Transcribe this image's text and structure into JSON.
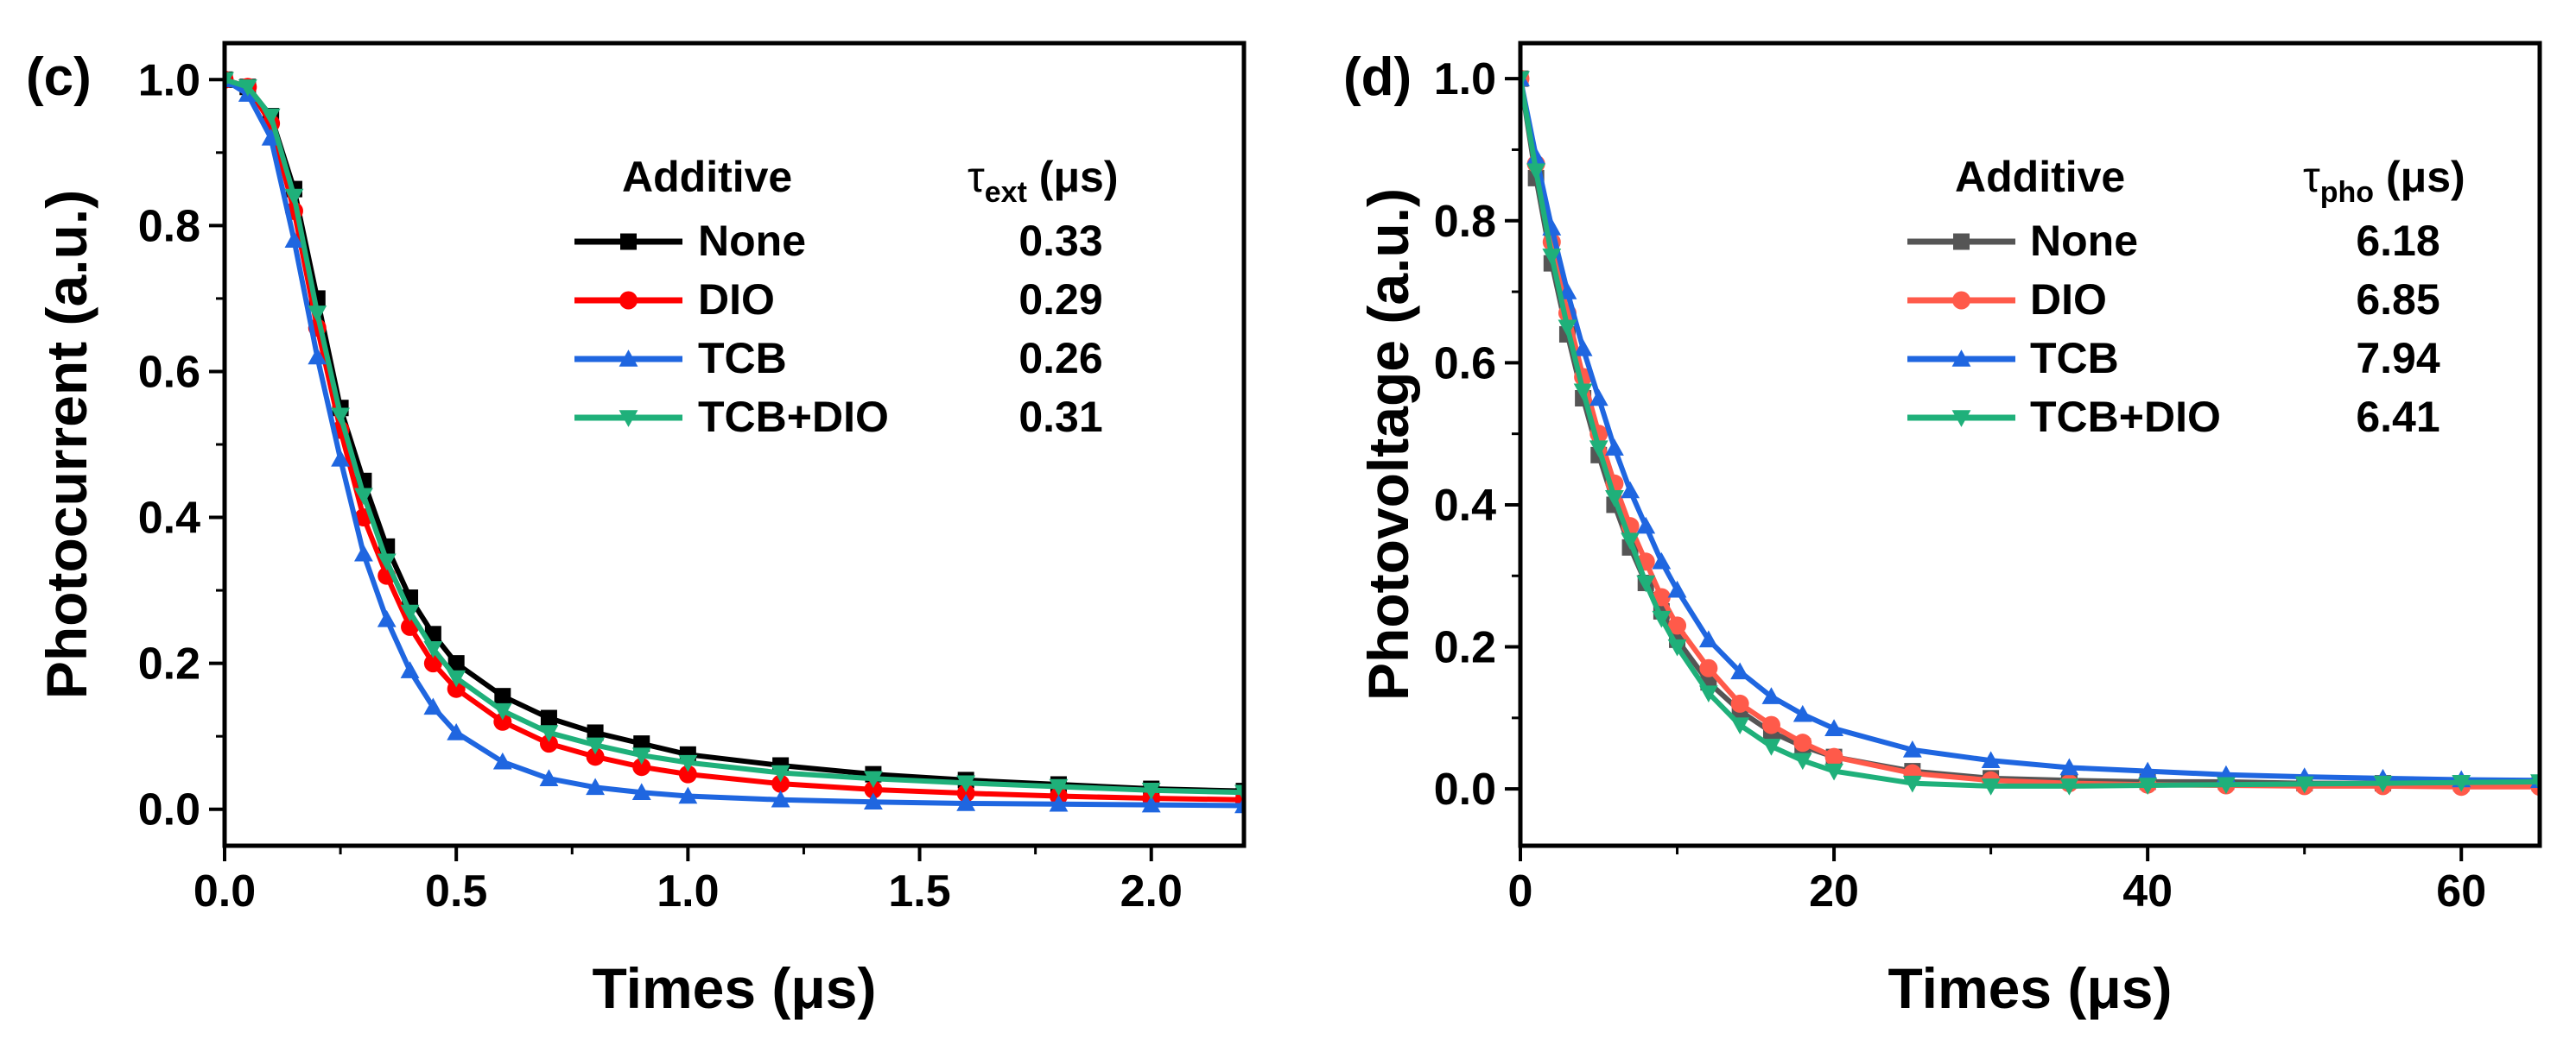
{
  "chart_data": [
    {
      "type": "line",
      "panel_label": "(c)",
      "xlabel": "Times (μs)",
      "ylabel": "Photocurrent (a.u.)",
      "xlim": [
        0,
        2.2
      ],
      "ylim": [
        -0.05,
        1.05
      ],
      "xticks": [
        "0.0",
        "0.5",
        "1.0",
        "1.5",
        "2.0"
      ],
      "yticks": [
        "0.0",
        "0.2",
        "0.4",
        "0.6",
        "0.8",
        "1.0"
      ],
      "legend_title": "Additive",
      "legend_value_header": {
        "symbol": "τ",
        "sub": "ext",
        "unit": " (μs)"
      },
      "legend_position": "top-right",
      "series": [
        {
          "name": "None",
          "value_label": "0.33",
          "color": "#000000",
          "marker": "square",
          "x": [
            0,
            0.05,
            0.1,
            0.15,
            0.2,
            0.25,
            0.3,
            0.35,
            0.4,
            0.45,
            0.5,
            0.6,
            0.7,
            0.8,
            0.9,
            1.0,
            1.2,
            1.4,
            1.6,
            1.8,
            2.0,
            2.2
          ],
          "y": [
            1.0,
            0.99,
            0.95,
            0.85,
            0.7,
            0.55,
            0.45,
            0.36,
            0.29,
            0.24,
            0.2,
            0.155,
            0.125,
            0.105,
            0.09,
            0.075,
            0.06,
            0.048,
            0.04,
            0.034,
            0.028,
            0.025
          ]
        },
        {
          "name": "DIO",
          "value_label": "0.29",
          "color": "#ff0000",
          "marker": "circle",
          "x": [
            0,
            0.05,
            0.1,
            0.15,
            0.2,
            0.25,
            0.3,
            0.35,
            0.4,
            0.45,
            0.5,
            0.6,
            0.7,
            0.8,
            0.9,
            1.0,
            1.2,
            1.4,
            1.6,
            1.8,
            2.0,
            2.2
          ],
          "y": [
            1.0,
            0.99,
            0.94,
            0.82,
            0.66,
            0.52,
            0.4,
            0.32,
            0.25,
            0.2,
            0.165,
            0.12,
            0.09,
            0.072,
            0.058,
            0.048,
            0.035,
            0.027,
            0.022,
            0.018,
            0.015,
            0.013
          ]
        },
        {
          "name": "TCB",
          "value_label": "0.26",
          "color": "#1f66e0",
          "marker": "triangle-up",
          "x": [
            0,
            0.05,
            0.1,
            0.15,
            0.2,
            0.25,
            0.3,
            0.35,
            0.4,
            0.45,
            0.5,
            0.6,
            0.7,
            0.8,
            0.9,
            1.0,
            1.2,
            1.4,
            1.6,
            1.8,
            2.0,
            2.2
          ],
          "y": [
            1.0,
            0.98,
            0.92,
            0.78,
            0.62,
            0.48,
            0.35,
            0.26,
            0.19,
            0.14,
            0.105,
            0.065,
            0.042,
            0.03,
            0.023,
            0.018,
            0.013,
            0.01,
            0.008,
            0.007,
            0.006,
            0.005
          ]
        },
        {
          "name": "TCB+DIO",
          "value_label": "0.31",
          "color": "#1fb07a",
          "marker": "triangle-down",
          "x": [
            0,
            0.05,
            0.1,
            0.15,
            0.2,
            0.25,
            0.3,
            0.35,
            0.4,
            0.45,
            0.5,
            0.6,
            0.7,
            0.8,
            0.9,
            1.0,
            1.2,
            1.4,
            1.6,
            1.8,
            2.0,
            2.2
          ],
          "y": [
            1.0,
            0.99,
            0.95,
            0.84,
            0.68,
            0.54,
            0.43,
            0.34,
            0.27,
            0.22,
            0.18,
            0.135,
            0.105,
            0.088,
            0.074,
            0.064,
            0.05,
            0.042,
            0.036,
            0.031,
            0.026,
            0.023
          ]
        }
      ]
    },
    {
      "type": "line",
      "panel_label": "(d)",
      "xlabel": "Times (μs)",
      "ylabel": "Photovoltage (a.u.)",
      "xlim": [
        0,
        65
      ],
      "ylim": [
        -0.08,
        1.05
      ],
      "xticks": [
        "0",
        "20",
        "40",
        "60"
      ],
      "yticks": [
        "0.0",
        "0.2",
        "0.4",
        "0.6",
        "0.8",
        "1.0"
      ],
      "legend_title": "Additive",
      "legend_value_header": {
        "symbol": "τ",
        "sub": "pho",
        "unit": " (μs)"
      },
      "legend_position": "top-right",
      "series": [
        {
          "name": "None",
          "value_label": "6.18",
          "color": "#555555",
          "marker": "square",
          "x": [
            0,
            1,
            2,
            3,
            4,
            5,
            6,
            7,
            8,
            9,
            10,
            12,
            14,
            16,
            18,
            20,
            25,
            30,
            35,
            40,
            45,
            50,
            55,
            60,
            65
          ],
          "y": [
            1.0,
            0.86,
            0.74,
            0.64,
            0.55,
            0.47,
            0.4,
            0.34,
            0.29,
            0.25,
            0.21,
            0.15,
            0.11,
            0.08,
            0.06,
            0.045,
            0.025,
            0.015,
            0.012,
            0.01,
            0.01,
            0.008,
            0.008,
            0.008,
            0.008
          ]
        },
        {
          "name": "DIO",
          "value_label": "6.85",
          "color": "#ff5a4a",
          "marker": "circle",
          "x": [
            0,
            1,
            2,
            3,
            4,
            5,
            6,
            7,
            8,
            9,
            10,
            12,
            14,
            16,
            18,
            20,
            25,
            30,
            35,
            40,
            45,
            50,
            55,
            60,
            65
          ],
          "y": [
            1.0,
            0.88,
            0.77,
            0.67,
            0.58,
            0.5,
            0.43,
            0.37,
            0.32,
            0.27,
            0.23,
            0.17,
            0.12,
            0.09,
            0.065,
            0.045,
            0.022,
            0.012,
            0.008,
            0.006,
            0.005,
            0.004,
            0.004,
            0.003,
            0.003
          ]
        },
        {
          "name": "TCB",
          "value_label": "7.94",
          "color": "#1f66e0",
          "marker": "triangle-up",
          "x": [
            0,
            1,
            2,
            3,
            4,
            5,
            6,
            7,
            8,
            9,
            10,
            12,
            14,
            16,
            18,
            20,
            25,
            30,
            35,
            40,
            45,
            50,
            55,
            60,
            65
          ],
          "y": [
            1.0,
            0.89,
            0.79,
            0.7,
            0.62,
            0.55,
            0.48,
            0.42,
            0.37,
            0.32,
            0.28,
            0.21,
            0.165,
            0.13,
            0.105,
            0.085,
            0.055,
            0.04,
            0.03,
            0.025,
            0.02,
            0.017,
            0.015,
            0.013,
            0.012
          ]
        },
        {
          "name": "TCB+DIO",
          "value_label": "6.41",
          "color": "#1fb07a",
          "marker": "triangle-down",
          "x": [
            0,
            1,
            2,
            3,
            4,
            5,
            6,
            7,
            8,
            9,
            10,
            12,
            14,
            16,
            18,
            20,
            25,
            30,
            35,
            40,
            45,
            50,
            55,
            60,
            65
          ],
          "y": [
            1.0,
            0.87,
            0.75,
            0.65,
            0.56,
            0.48,
            0.41,
            0.35,
            0.29,
            0.24,
            0.2,
            0.135,
            0.09,
            0.06,
            0.04,
            0.025,
            0.008,
            0.004,
            0.004,
            0.005,
            0.006,
            0.007,
            0.008,
            0.009,
            0.01
          ]
        }
      ]
    }
  ]
}
